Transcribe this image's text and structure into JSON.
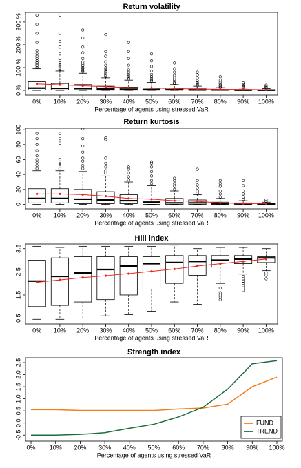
{
  "chart_data": [
    {
      "type": "box",
      "title": "Return volatility",
      "x_label": "Percentage of agents using stressed VaR",
      "categories": [
        "0%",
        "10%",
        "20%",
        "30%",
        "40%",
        "50%",
        "60%",
        "70%",
        "80%",
        "90%",
        "100%"
      ],
      "ylim": [
        -21,
        342
      ],
      "yticks": [
        {
          "value": 0,
          "label": "0 %"
        },
        {
          "value": 100,
          "label": "100 %"
        },
        {
          "value": 200,
          "label": "200 %"
        },
        {
          "value": 300,
          "label": "300 %"
        }
      ],
      "box_color": "#000000",
      "mean_color": "#e8221c",
      "min": [
        0,
        0,
        0,
        0,
        0,
        0,
        0,
        0,
        0,
        0,
        0
      ],
      "q1": [
        2,
        2,
        2,
        1,
        1,
        1,
        1,
        1,
        1,
        1,
        0
      ],
      "median": [
        10,
        9,
        8,
        6,
        5,
        4,
        3,
        2,
        2,
        1,
        1
      ],
      "q3": [
        38,
        30,
        25,
        18,
        14,
        11,
        9,
        7,
        5,
        4,
        3
      ],
      "max": [
        95,
        85,
        75,
        55,
        45,
        35,
        25,
        18,
        12,
        10,
        8
      ],
      "outliers": [
        [
          100,
          108,
          115,
          122,
          130,
          140,
          150,
          160,
          175,
          210,
          250,
          290,
          330
        ],
        [
          92,
          98,
          105,
          112,
          120,
          130,
          142,
          160,
          190,
          215,
          250,
          330
        ],
        [
          82,
          88,
          95,
          100,
          108,
          115,
          125,
          140,
          165,
          190,
          230,
          265
        ],
        [
          62,
          68,
          75,
          82,
          90,
          98,
          110,
          125,
          150,
          170,
          245
        ],
        [
          50,
          56,
          62,
          70,
          80,
          90,
          110,
          140,
          170,
          210
        ],
        [
          40,
          45,
          52,
          60,
          70,
          85,
          105,
          130,
          160
        ],
        [
          28,
          32,
          38,
          45,
          55,
          65,
          80,
          95,
          120
        ],
        [
          20,
          24,
          28,
          34,
          42,
          55,
          68,
          80
        ],
        [
          14,
          18,
          22,
          28,
          35,
          45,
          60
        ],
        [
          12,
          15,
          20,
          26,
          33
        ],
        [
          10,
          13,
          17,
          22
        ]
      ],
      "mean": [
        28,
        24,
        20,
        16,
        12,
        10,
        8,
        6,
        5,
        4,
        3
      ]
    },
    {
      "type": "box",
      "title": "Return kurtosis",
      "x_label": "Percentage of agents using stressed VaR",
      "categories": [
        "0%",
        "10%",
        "20%",
        "30%",
        "40%",
        "50%",
        "60%",
        "70%",
        "80%",
        "90%",
        "100%"
      ],
      "ylim": [
        -6,
        102
      ],
      "yticks": [
        0,
        20,
        40,
        60,
        80,
        100
      ],
      "box_color": "#000000",
      "mean_color": "#e8221c",
      "min": [
        0,
        0,
        0,
        0,
        0,
        0,
        0,
        0,
        0,
        0,
        0
      ],
      "q1": [
        2,
        2,
        1,
        1,
        1,
        0,
        0,
        0,
        0,
        0,
        0
      ],
      "median": [
        8,
        8,
        7,
        6,
        5,
        3,
        2,
        2,
        1,
        1,
        0
      ],
      "q3": [
        21,
        21,
        20,
        17,
        13,
        11,
        8,
        6,
        3,
        2,
        1
      ],
      "max": [
        45,
        45,
        44,
        38,
        30,
        25,
        18,
        13,
        8,
        5,
        3
      ],
      "outliers": [
        [
          48,
          52,
          56,
          60,
          65,
          72,
          80,
          88,
          95
        ],
        [
          48,
          53,
          55,
          60,
          82,
          88,
          95
        ],
        [
          48,
          52,
          58,
          62,
          70,
          78,
          88,
          101
        ],
        [
          42,
          45,
          50,
          55,
          62,
          87,
          89
        ],
        [
          33,
          37,
          42,
          47,
          50
        ],
        [
          28,
          32,
          38,
          44,
          50,
          55,
          57
        ],
        [
          20,
          24,
          28,
          32,
          35
        ],
        [
          15,
          18,
          22,
          26,
          32,
          47
        ],
        [
          10,
          14,
          18,
          24,
          28,
          32
        ],
        [
          7,
          10,
          14,
          18,
          25,
          32
        ],
        [
          4,
          6
        ]
      ],
      "mean": [
        14,
        14,
        13,
        11,
        8,
        7,
        5,
        4,
        2,
        1,
        1
      ]
    },
    {
      "type": "box",
      "title": "Hill index",
      "x_label": "Percentage of agents using stressed VaR",
      "categories": [
        "0%",
        "10%",
        "20%",
        "30%",
        "40%",
        "50%",
        "60%",
        "70%",
        "80%",
        "90%",
        "100%"
      ],
      "ylim": [
        0.25,
        3.7
      ],
      "yticks": [
        0.5,
        1.5,
        2.5,
        3.5
      ],
      "box_color": "#000000",
      "mean_color": "#e8221c",
      "min": [
        0.45,
        0.45,
        0.5,
        0.6,
        0.65,
        0.8,
        1.2,
        1.1,
        2.0,
        2.4,
        2.55
      ],
      "q1": [
        1.0,
        1.05,
        1.2,
        1.3,
        1.5,
        1.75,
        2.0,
        2.35,
        2.7,
        2.85,
        2.9
      ],
      "median": [
        2.1,
        2.3,
        2.45,
        2.6,
        2.75,
        2.85,
        2.9,
        2.95,
        3.0,
        3.05,
        3.1
      ],
      "q3": [
        3.0,
        3.1,
        3.15,
        3.15,
        3.15,
        3.15,
        3.2,
        3.2,
        3.2,
        3.2,
        3.15
      ],
      "max": [
        3.6,
        3.55,
        3.6,
        3.6,
        3.6,
        3.6,
        3.65,
        3.5,
        3.55,
        3.55,
        3.5
      ],
      "outliers": [
        [],
        [],
        [],
        [],
        [],
        [],
        [],
        [],
        [
          1.3,
          1.4,
          1.5,
          1.6,
          1.8
        ],
        [
          1.7,
          1.8,
          1.9,
          2.0,
          2.1,
          2.2,
          2.3
        ],
        [
          2.2,
          2.35,
          2.45
        ]
      ],
      "mean": [
        2.05,
        2.15,
        2.25,
        2.33,
        2.42,
        2.52,
        2.62,
        2.75,
        2.85,
        2.95,
        3.05
      ]
    },
    {
      "type": "line",
      "title": "Strength index",
      "x_label": "Percentage of agents using stressed VaR",
      "categories": [
        "0%",
        "10%",
        "20%",
        "30%",
        "40%",
        "50%",
        "60%",
        "70%",
        "80%",
        "90%",
        "100%"
      ],
      "ylim": [
        -0.75,
        2.7
      ],
      "yticks": [
        -0.5,
        {
          "value": 0,
          "label": "0.0"
        },
        0.5,
        {
          "value": 1,
          "label": "1.0"
        },
        1.5,
        {
          "value": 2,
          "label": "2.0"
        },
        2.5
      ],
      "legend": "bottom-right",
      "series": [
        {
          "name": "FUND",
          "color": "#f57f17",
          "values": [
            0.55,
            0.55,
            0.52,
            0.52,
            0.52,
            0.52,
            0.58,
            0.62,
            0.78,
            1.5,
            1.9
          ]
        },
        {
          "name": "TREND",
          "color": "#1b6e3a",
          "values": [
            -0.5,
            -0.5,
            -0.47,
            -0.4,
            -0.22,
            -0.05,
            0.25,
            0.65,
            1.4,
            2.45,
            2.58
          ]
        }
      ]
    }
  ]
}
